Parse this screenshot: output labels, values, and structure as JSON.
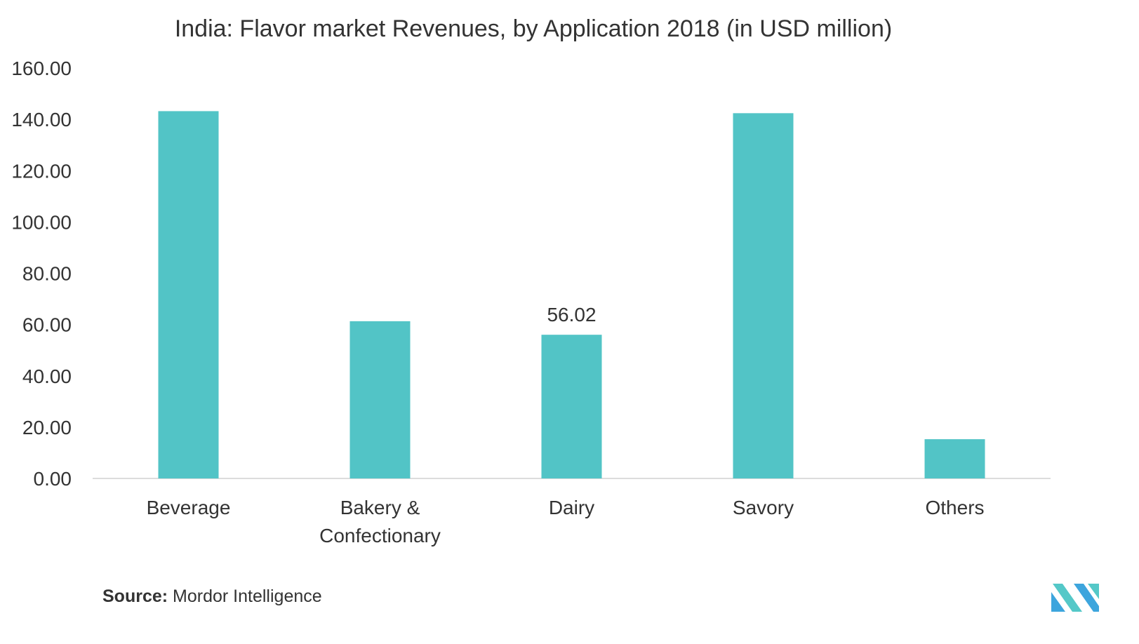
{
  "chart_data": {
    "type": "bar",
    "title": "India:  Flavor market Revenues, by Application 2018 (in USD million)",
    "categories": [
      "Beverage",
      "Bakery & Confectionary",
      "Dairy",
      "Savory",
      "Others"
    ],
    "category_lines": [
      [
        "Beverage"
      ],
      [
        "Bakery &",
        "Confectionary"
      ],
      [
        "Dairy"
      ],
      [
        "Savory"
      ],
      [
        "Others"
      ]
    ],
    "values": [
      143.2,
      61.3,
      56.02,
      142.4,
      15.3
    ],
    "data_labels": [
      "",
      "",
      "56.02",
      "",
      ""
    ],
    "ylim": [
      0,
      160
    ],
    "yticks": [
      "0.00",
      "20.00",
      "40.00",
      "60.00",
      "80.00",
      "100.00",
      "120.00",
      "140.00",
      "160.00"
    ],
    "xlabel": "",
    "ylabel": "",
    "grid": false,
    "legend": "none",
    "bar_color": "#52c4c6"
  },
  "source": {
    "label": "Source:",
    "text": "Mordor Intelligence"
  },
  "logo": {
    "icon": "mordor-intelligence-logo-icon",
    "colors": [
      "#3da5dd",
      "#54c8c8"
    ]
  }
}
